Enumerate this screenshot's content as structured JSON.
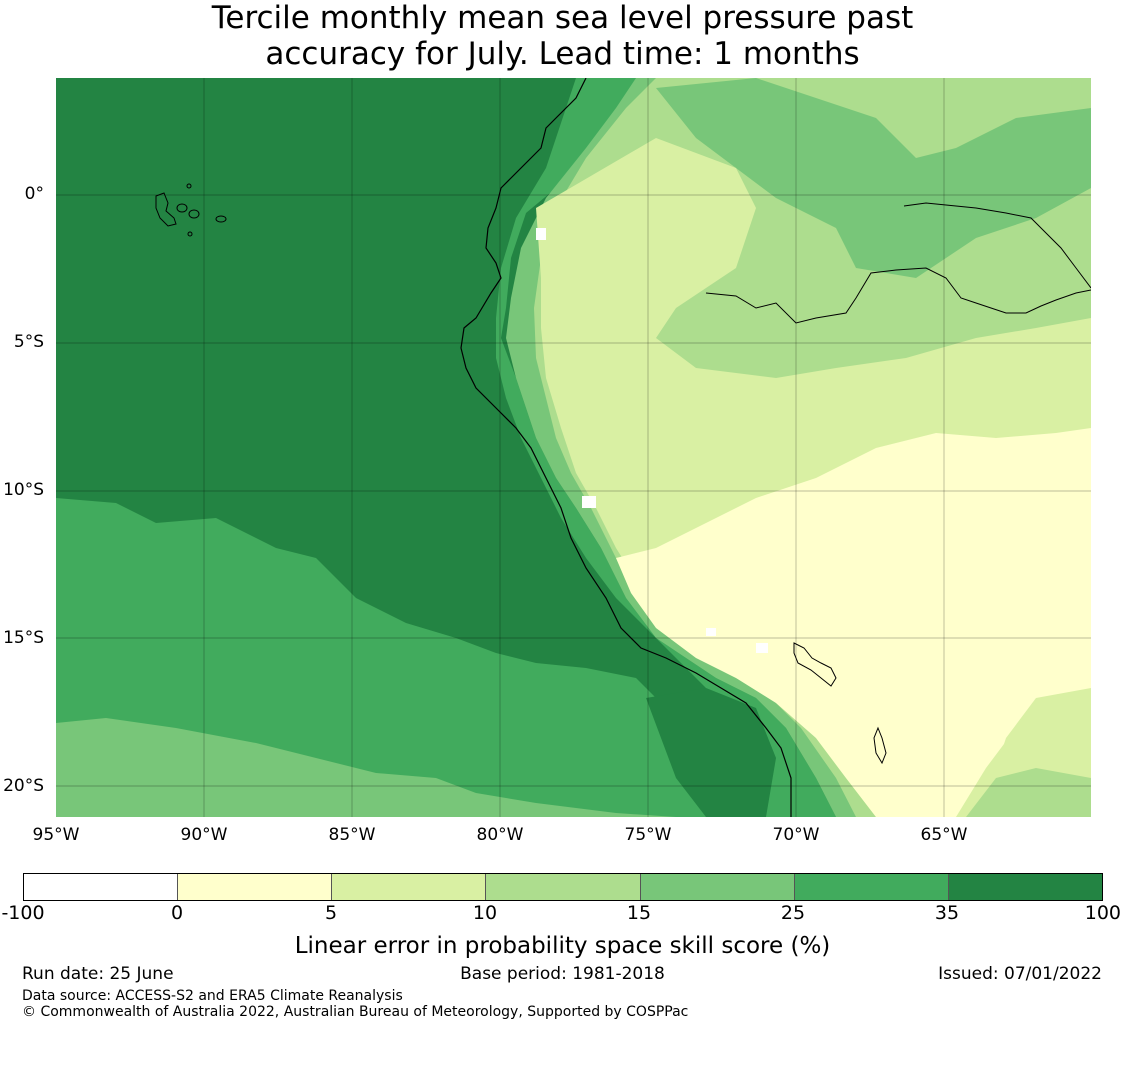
{
  "title": {
    "line1": "Tercile monthly mean sea level pressure past",
    "line2": "accuracy for July. Lead time: 1 months"
  },
  "map": {
    "lat_labels": [
      "0°",
      "5°S",
      "10°S",
      "15°S",
      "20°S"
    ],
    "lon_labels": [
      "95°W",
      "90°W",
      "85°W",
      "80°W",
      "75°W",
      "70°W",
      "65°W"
    ]
  },
  "colorbar": {
    "ticks": [
      "-100",
      "0",
      "5",
      "10",
      "15",
      "25",
      "35",
      "100"
    ],
    "colors": [
      "#ffffff",
      "#ffffcc",
      "#d9f0a3",
      "#addd8e",
      "#78c679",
      "#41ab5d",
      "#238443"
    ],
    "label": "Linear error in probability space skill score (%)"
  },
  "footer": {
    "run_date": "Run date: 25 June",
    "base_period": "Base period: 1981-2018",
    "issued": "Issued: 07/01/2022",
    "data_source": "Data source: ACCESS-S2 and ERA5 Climate Reanalysis",
    "copyright": "© Commonwealth of Australia 2022, Australian Bureau of Meteorology, Supported by COSPPac"
  }
}
